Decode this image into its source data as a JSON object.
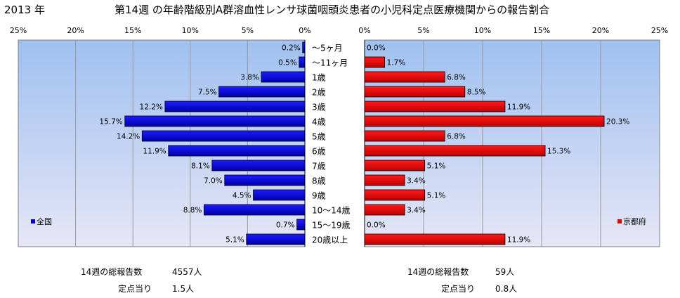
{
  "header": {
    "year": "2013 年",
    "title": "第14週 の年齢階級別A群溶血性レンサ球菌咽頭炎患者の小児科定点医療機関からの報告割合"
  },
  "chart_data": {
    "type": "bar",
    "orientation": "horizontal",
    "layout": "back-to-back",
    "categories": [
      "～5ヶ月",
      "～11ヶ月",
      "1歳",
      "2歳",
      "3歳",
      "4歳",
      "5歳",
      "6歳",
      "7歳",
      "8歳",
      "9歳",
      "10～14歳",
      "15～19歳",
      "20歳以上"
    ],
    "xlim": [
      0,
      25
    ],
    "ticks": [
      "0%",
      "5%",
      "10%",
      "15%",
      "20%",
      "25%"
    ],
    "grid": true,
    "series": [
      {
        "name": "全国",
        "side": "left",
        "color": "#0000CC",
        "values": [
          0.2,
          0.5,
          3.8,
          7.5,
          12.2,
          15.7,
          14.2,
          11.9,
          8.1,
          7.0,
          4.5,
          8.8,
          0.7,
          5.1
        ],
        "labels": [
          "0.2%",
          "0.5%",
          "3.8%",
          "7.5%",
          "12.2%",
          "15.7%",
          "14.2%",
          "11.9%",
          "8.1%",
          "7.0%",
          "4.5%",
          "8.8%",
          "0.7%",
          "5.1%"
        ],
        "legend_position": "bottom-left"
      },
      {
        "name": "京都府",
        "side": "right",
        "color": "#E00000",
        "values": [
          0.0,
          1.7,
          6.8,
          8.5,
          11.9,
          20.3,
          6.8,
          15.3,
          5.1,
          3.4,
          5.1,
          3.4,
          0.0,
          11.9
        ],
        "labels": [
          "0.0%",
          "1.7%",
          "6.8%",
          "8.5%",
          "11.9%",
          "20.3%",
          "6.8%",
          "15.3%",
          "5.1%",
          "3.4%",
          "5.1%",
          "3.4%",
          "0.0%",
          "11.9%"
        ],
        "legend_position": "bottom-right"
      }
    ]
  },
  "stats": {
    "national": {
      "total_label": "14週の総報告数",
      "total_value": "4557人",
      "per_label": "定点当り",
      "per_value": "1.5人"
    },
    "kyoto": {
      "total_label": "14週の総報告数",
      "total_value": "59人",
      "per_label": "定点当り",
      "per_value": "0.8人"
    }
  }
}
